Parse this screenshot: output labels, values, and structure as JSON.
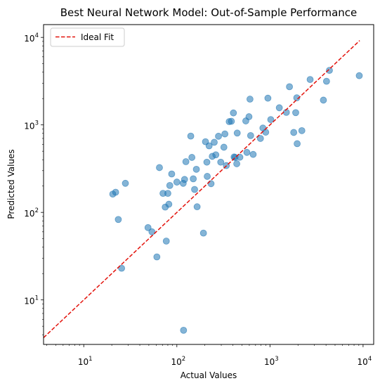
{
  "chart_data": {
    "type": "scatter",
    "title": "Best Neural Network Model: Out-of-Sample Performance",
    "xlabel": "Actual Values",
    "ylabel": "Predicted Values",
    "xscale": "log",
    "yscale": "log",
    "xlim": [
      3.7,
      13000
    ],
    "ylim": [
      3.1,
      14000
    ],
    "x_ticks": [
      {
        "value": 10,
        "base": "10",
        "exp": "1"
      },
      {
        "value": 100,
        "base": "10",
        "exp": "2"
      },
      {
        "value": 1000,
        "base": "10",
        "exp": "3"
      },
      {
        "value": 10000,
        "base": "10",
        "exp": "4"
      }
    ],
    "y_ticks": [
      {
        "value": 10,
        "base": "10",
        "exp": "1"
      },
      {
        "value": 100,
        "base": "10",
        "exp": "2"
      },
      {
        "value": 1000,
        "base": "10",
        "exp": "3"
      },
      {
        "value": 10000,
        "base": "10",
        "exp": "4"
      }
    ],
    "grid": false,
    "legend_position": "upper-left",
    "point_color": "#1f77b4",
    "ideal_line": {
      "name": "Ideal Fit",
      "color": "#e3120b",
      "style": "dashed",
      "from": 3.7,
      "to": 9200
    },
    "points": [
      {
        "x": 20.5,
        "y": 162
      },
      {
        "x": 22,
        "y": 170
      },
      {
        "x": 23.5,
        "y": 83
      },
      {
        "x": 25.5,
        "y": 23
      },
      {
        "x": 28,
        "y": 215
      },
      {
        "x": 49,
        "y": 67
      },
      {
        "x": 54,
        "y": 60
      },
      {
        "x": 61,
        "y": 31
      },
      {
        "x": 65,
        "y": 325
      },
      {
        "x": 71,
        "y": 165
      },
      {
        "x": 75,
        "y": 115
      },
      {
        "x": 77,
        "y": 47
      },
      {
        "x": 80,
        "y": 165
      },
      {
        "x": 82,
        "y": 124
      },
      {
        "x": 84,
        "y": 203
      },
      {
        "x": 88,
        "y": 275
      },
      {
        "x": 100,
        "y": 222
      },
      {
        "x": 117,
        "y": 215
      },
      {
        "x": 118,
        "y": 4.5
      },
      {
        "x": 121,
        "y": 238
      },
      {
        "x": 125,
        "y": 380
      },
      {
        "x": 141,
        "y": 745
      },
      {
        "x": 145,
        "y": 425
      },
      {
        "x": 150,
        "y": 242
      },
      {
        "x": 155,
        "y": 183
      },
      {
        "x": 162,
        "y": 311
      },
      {
        "x": 165,
        "y": 116
      },
      {
        "x": 193,
        "y": 58
      },
      {
        "x": 203,
        "y": 642
      },
      {
        "x": 210,
        "y": 375
      },
      {
        "x": 212,
        "y": 258
      },
      {
        "x": 222,
        "y": 576
      },
      {
        "x": 233,
        "y": 213
      },
      {
        "x": 240,
        "y": 437
      },
      {
        "x": 252,
        "y": 633
      },
      {
        "x": 262,
        "y": 455
      },
      {
        "x": 280,
        "y": 742
      },
      {
        "x": 296,
        "y": 375
      },
      {
        "x": 320,
        "y": 556
      },
      {
        "x": 328,
        "y": 788
      },
      {
        "x": 340,
        "y": 343
      },
      {
        "x": 365,
        "y": 1090
      },
      {
        "x": 385,
        "y": 1100
      },
      {
        "x": 405,
        "y": 1370
      },
      {
        "x": 412,
        "y": 430
      },
      {
        "x": 422,
        "y": 425
      },
      {
        "x": 440,
        "y": 360
      },
      {
        "x": 445,
        "y": 807
      },
      {
        "x": 475,
        "y": 427
      },
      {
        "x": 550,
        "y": 1110
      },
      {
        "x": 565,
        "y": 485
      },
      {
        "x": 595,
        "y": 1240
      },
      {
        "x": 610,
        "y": 1970
      },
      {
        "x": 620,
        "y": 755
      },
      {
        "x": 660,
        "y": 460
      },
      {
        "x": 790,
        "y": 700
      },
      {
        "x": 840,
        "y": 920
      },
      {
        "x": 900,
        "y": 825
      },
      {
        "x": 950,
        "y": 2020
      },
      {
        "x": 1020,
        "y": 1150
      },
      {
        "x": 1260,
        "y": 1570
      },
      {
        "x": 1500,
        "y": 1390
      },
      {
        "x": 1620,
        "y": 2730
      },
      {
        "x": 1800,
        "y": 820
      },
      {
        "x": 1890,
        "y": 1380
      },
      {
        "x": 1940,
        "y": 2040
      },
      {
        "x": 1960,
        "y": 610
      },
      {
        "x": 2200,
        "y": 860
      },
      {
        "x": 2700,
        "y": 3300
      },
      {
        "x": 3750,
        "y": 1920
      },
      {
        "x": 4050,
        "y": 3150
      },
      {
        "x": 4350,
        "y": 4200
      },
      {
        "x": 9100,
        "y": 3650
      }
    ]
  }
}
